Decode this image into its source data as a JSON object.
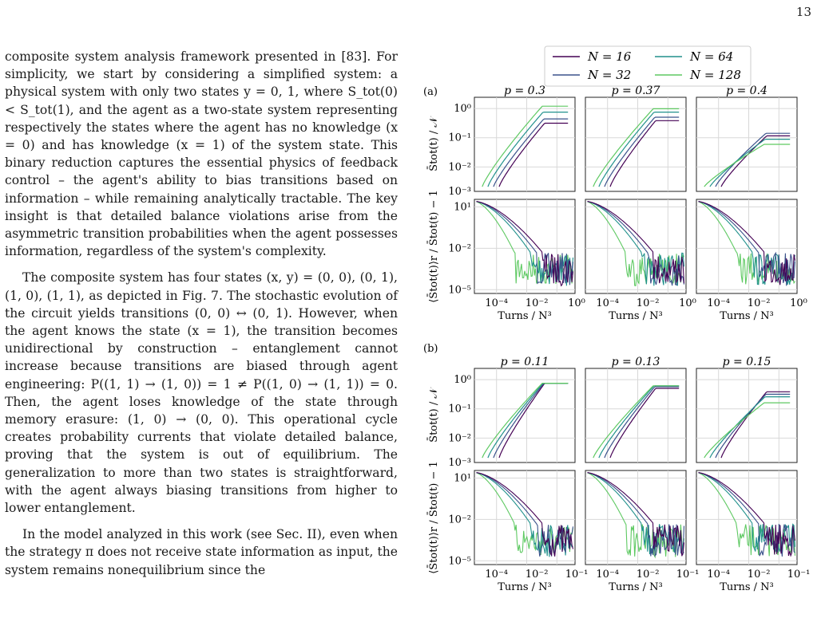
{
  "page": {
    "number": "13"
  },
  "text": {
    "para1": "composite system analysis framework presented in [83]. For simplicity, we start by considering a simplified system: a physical system with only two states y = 0, 1, where S_tot(0) < S_tot(1), and the agent as a two-state system representing respectively the states where the agent has no knowledge (x = 0) and has knowledge (x = 1) of the system state. This binary reduction captures the essential physics of feedback control – the agent's ability to bias transitions based on information – while remaining analytically tractable. The key insight is that detailed balance violations arise from the asymmetric transition probabilities when the agent possesses information, regardless of the system's complexity.",
    "para2": "The composite system has four states (x, y) = (0, 0), (0, 1), (1, 0), (1, 1), as depicted in Fig. 7. The stochastic evolution of the circuit yields transitions (0, 0) ↔ (0, 1). However, when the agent knows the state (x = 1), the transition becomes unidirectional by construction – entanglement cannot increase because transitions are biased through agent engineering: P((1, 1) → (1, 0)) = 1 ≠ P((1, 0) → (1, 1)) = 0. Then, the agent loses knowledge of the state through memory erasure: (1, 0) → (0, 0). This operational cycle creates probability currents that violate detailed balance, proving that the system is out of equilibrium. The generalization to more than two states is straightforward, with the agent always biasing transitions from higher to lower entanglement.",
    "para3": "In the model analyzed in this work (see Sec. II), even when the strategy π does not receive state information as input, the system remains nonequilibrium since the"
  },
  "figure": {
    "legend": [
      "N = 16",
      "N = 32",
      "N = 64",
      "N = 128"
    ],
    "colors": {
      "N16": "#440154",
      "N32": "#3b528b",
      "N64": "#21918c",
      "N128": "#5ec962"
    },
    "panel_a": {
      "label": "(a)",
      "titles": [
        "p = 0.3",
        "p = 0.37",
        "p = 0.4"
      ]
    },
    "panel_b": {
      "label": "(b)",
      "titles": [
        "p = 0.11",
        "p = 0.13",
        "p = 0.15"
      ]
    },
    "ylabel_top": "S̄tot(t) / 𝒩",
    "ylabel_bottom": "⟨S̄tot(t)⟩r / S̄tot(t) − 1",
    "xlabel": "Turns / N³",
    "yticks_top": [
      "10⁰",
      "10⁻¹",
      "10⁻²",
      "10⁻³"
    ],
    "yticks_bottom": [
      "10¹",
      "10⁻²",
      "10⁻⁵"
    ],
    "xticks_a": [
      "10⁻⁴",
      "10⁻²",
      "10⁰"
    ],
    "xticks_b": [
      "10⁻⁴",
      "10⁻²",
      "10⁻¹"
    ]
  }
}
